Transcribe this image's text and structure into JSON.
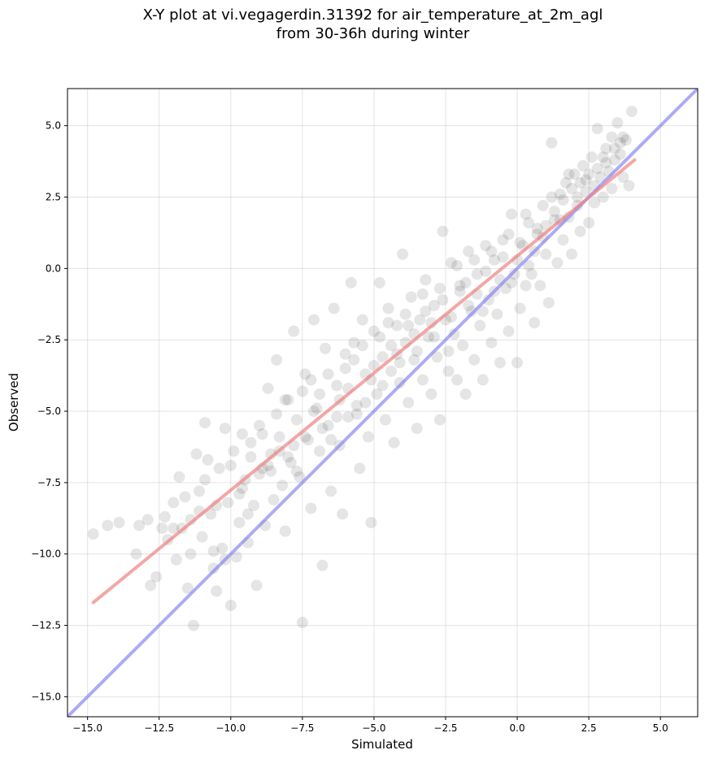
{
  "chart_data": {
    "type": "scatter",
    "title_line1": "X-Y plot at vi.vegagerdin.31392 for air_temperature_at_2m_agl",
    "title_line2": "from 30-36h during winter",
    "xlabel": "Simulated",
    "ylabel": "Observed",
    "xlim": [
      -15.7,
      6.3
    ],
    "ylim": [
      -15.7,
      6.3
    ],
    "grid": true,
    "xticks": [
      -15.0,
      -12.5,
      -10.0,
      -7.5,
      -5.0,
      -2.5,
      0.0,
      2.5,
      5.0
    ],
    "yticks": [
      -15.0,
      -12.5,
      -10.0,
      -7.5,
      -5.0,
      -2.5,
      0.0,
      2.5,
      5.0
    ],
    "xtick_labels": [
      "−15.0",
      "−12.5",
      "−10.0",
      "−7.5",
      "−5.0",
      "−2.5",
      "0.0",
      "2.5",
      "5.0"
    ],
    "ytick_labels": [
      "−15.0",
      "−12.5",
      "−10.0",
      "−7.5",
      "−5.0",
      "−2.5",
      "0.0",
      "2.5",
      "5.0"
    ],
    "point_color": "#000000",
    "point_alpha": 0.1,
    "fit_line": {
      "color": "#f08080",
      "x": [
        -14.8,
        4.1
      ],
      "y": [
        -11.7,
        3.8
      ]
    },
    "identity_line": {
      "color": "#8080f0",
      "x": [
        -15.7,
        6.3
      ],
      "y": [
        -15.7,
        6.3
      ]
    },
    "points": [
      [
        -14.8,
        -9.3
      ],
      [
        -14.3,
        -9.0
      ],
      [
        -13.9,
        -8.9
      ],
      [
        -13.3,
        -10.0
      ],
      [
        -13.2,
        -9.0
      ],
      [
        -12.9,
        -8.8
      ],
      [
        -12.8,
        -11.1
      ],
      [
        -12.6,
        -10.8
      ],
      [
        -12.4,
        -9.1
      ],
      [
        -12.2,
        -9.5
      ],
      [
        -12.0,
        -8.2
      ],
      [
        -11.9,
        -10.2
      ],
      [
        -11.8,
        -7.3
      ],
      [
        -11.6,
        -8.0
      ],
      [
        -11.5,
        -11.2
      ],
      [
        -11.4,
        -10.0
      ],
      [
        -11.3,
        -12.5
      ],
      [
        -11.2,
        -6.5
      ],
      [
        -11.1,
        -7.8
      ],
      [
        -11.0,
        -9.4
      ],
      [
        -10.9,
        -5.4
      ],
      [
        -10.8,
        -6.7
      ],
      [
        -10.7,
        -8.6
      ],
      [
        -10.6,
        -10.5
      ],
      [
        -10.5,
        -11.3
      ],
      [
        -10.4,
        -7.0
      ],
      [
        -10.3,
        -9.8
      ],
      [
        -10.2,
        -5.6
      ],
      [
        -10.1,
        -8.2
      ],
      [
        -10.0,
        -11.8
      ],
      [
        -9.9,
        -6.4
      ],
      [
        -9.8,
        -10.1
      ],
      [
        -9.7,
        -8.9
      ],
      [
        -9.6,
        -5.8
      ],
      [
        -9.5,
        -7.4
      ],
      [
        -9.4,
        -9.6
      ],
      [
        -9.3,
        -6.1
      ],
      [
        -9.2,
        -8.3
      ],
      [
        -9.1,
        -11.1
      ],
      [
        -9.0,
        -5.5
      ],
      [
        -8.9,
        -7.0
      ],
      [
        -8.8,
        -9.0
      ],
      [
        -8.7,
        -4.2
      ],
      [
        -8.6,
        -6.5
      ],
      [
        -8.5,
        -8.1
      ],
      [
        -8.4,
        -3.2
      ],
      [
        -8.3,
        -5.9
      ],
      [
        -8.2,
        -7.6
      ],
      [
        -8.1,
        -9.2
      ],
      [
        -8.0,
        -4.6
      ],
      [
        -7.9,
        -6.8
      ],
      [
        -7.8,
        -2.2
      ],
      [
        -7.7,
        -5.3
      ],
      [
        -7.6,
        -7.3
      ],
      [
        -7.5,
        -12.4
      ],
      [
        -7.4,
        -3.7
      ],
      [
        -7.3,
        -6.0
      ],
      [
        -7.2,
        -8.4
      ],
      [
        -7.1,
        -1.8
      ],
      [
        -7.0,
        -4.9
      ],
      [
        -6.9,
        -6.4
      ],
      [
        -6.8,
        -10.4
      ],
      [
        -6.7,
        -2.8
      ],
      [
        -6.6,
        -5.5
      ],
      [
        -6.5,
        -7.8
      ],
      [
        -6.4,
        -1.4
      ],
      [
        -6.3,
        -4.1
      ],
      [
        -6.2,
        -6.2
      ],
      [
        -6.1,
        -8.6
      ],
      [
        -6.0,
        -3.0
      ],
      [
        -5.9,
        -5.2
      ],
      [
        -5.8,
        -0.5
      ],
      [
        -5.7,
        -2.6
      ],
      [
        -5.6,
        -4.8
      ],
      [
        -5.5,
        -7.0
      ],
      [
        -5.4,
        -1.8
      ],
      [
        -5.3,
        -3.7
      ],
      [
        -5.2,
        -5.9
      ],
      [
        -5.1,
        -8.9
      ],
      [
        -5.0,
        -2.2
      ],
      [
        -4.9,
        -4.4
      ],
      [
        -4.8,
        -0.5
      ],
      [
        -4.7,
        -3.1
      ],
      [
        -4.6,
        -5.3
      ],
      [
        -4.5,
        -1.4
      ],
      [
        -4.4,
        -3.6
      ],
      [
        -4.3,
        -6.1
      ],
      [
        -4.2,
        -2.0
      ],
      [
        -4.1,
        -4.0
      ],
      [
        -4.0,
        0.5
      ],
      [
        -3.9,
        -2.6
      ],
      [
        -3.8,
        -4.7
      ],
      [
        -3.7,
        -1.0
      ],
      [
        -3.6,
        -3.2
      ],
      [
        -3.5,
        -5.6
      ],
      [
        -3.4,
        -1.8
      ],
      [
        -3.3,
        -3.9
      ],
      [
        -3.2,
        -0.4
      ],
      [
        -3.1,
        -2.4
      ],
      [
        -3.0,
        -4.4
      ],
      [
        -2.9,
        -1.3
      ],
      [
        -2.8,
        -3.1
      ],
      [
        -2.7,
        -5.3
      ],
      [
        -2.6,
        1.3
      ],
      [
        -2.5,
        -1.8
      ],
      [
        -2.4,
        -3.6
      ],
      [
        -2.3,
        0.2
      ],
      [
        -2.2,
        -2.3
      ],
      [
        -2.1,
        -3.9
      ],
      [
        -2.0,
        -0.8
      ],
      [
        -1.9,
        -2.7
      ],
      [
        -1.8,
        -4.4
      ],
      [
        -1.7,
        0.6
      ],
      [
        -1.6,
        -1.5
      ],
      [
        -1.5,
        -3.2
      ],
      [
        -1.4,
        -0.2
      ],
      [
        -1.3,
        -2.0
      ],
      [
        -1.2,
        -3.9
      ],
      [
        -1.1,
        0.8
      ],
      [
        -1.0,
        -1.1
      ],
      [
        -0.9,
        -2.6
      ],
      [
        -0.8,
        0.3
      ],
      [
        -0.7,
        -1.6
      ],
      [
        -0.6,
        -3.3
      ],
      [
        -0.5,
        1.0
      ],
      [
        -0.4,
        -0.7
      ],
      [
        -0.3,
        -2.2
      ],
      [
        -0.2,
        1.9
      ],
      [
        -0.1,
        -0.2
      ],
      [
        0.0,
        -3.3
      ],
      [
        0.1,
        -1.4
      ],
      [
        0.2,
        0.8
      ],
      [
        0.3,
        -0.6
      ],
      [
        0.4,
        1.6
      ],
      [
        0.5,
        -0.2
      ],
      [
        0.6,
        -1.9
      ],
      [
        0.7,
        1.2
      ],
      [
        0.8,
        -0.6
      ],
      [
        0.9,
        2.2
      ],
      [
        1.0,
        0.5
      ],
      [
        1.1,
        -1.2
      ],
      [
        1.2,
        4.4
      ],
      [
        1.3,
        1.7
      ],
      [
        1.4,
        0.2
      ],
      [
        1.5,
        2.6
      ],
      [
        1.6,
        1.0
      ],
      [
        1.7,
        3.0
      ],
      [
        1.8,
        1.8
      ],
      [
        1.9,
        0.5
      ],
      [
        2.0,
        3.3
      ],
      [
        2.1,
        2.2
      ],
      [
        2.2,
        1.3
      ],
      [
        2.3,
        3.6
      ],
      [
        2.4,
        2.7
      ],
      [
        2.5,
        1.6
      ],
      [
        2.6,
        3.9
      ],
      [
        2.7,
        2.9
      ],
      [
        2.8,
        4.9
      ],
      [
        2.9,
        3.2
      ],
      [
        3.0,
        2.5
      ],
      [
        3.1,
        4.2
      ],
      [
        3.2,
        3.4
      ],
      [
        3.3,
        4.6
      ],
      [
        3.4,
        3.8
      ],
      [
        3.5,
        5.1
      ],
      [
        3.6,
        4.0
      ],
      [
        3.7,
        3.2
      ],
      [
        3.8,
        4.5
      ],
      [
        3.9,
        2.9
      ],
      [
        4.0,
        5.5
      ],
      [
        -12.3,
        -8.7
      ],
      [
        -11.7,
        -9.1
      ],
      [
        -11.1,
        -8.5
      ],
      [
        -10.6,
        -9.9
      ],
      [
        -10.2,
        -10.2
      ],
      [
        -9.7,
        -7.9
      ],
      [
        -9.4,
        -8.6
      ],
      [
        -9.0,
        -7.2
      ],
      [
        -8.6,
        -7.1
      ],
      [
        -8.3,
        -6.4
      ],
      [
        -8.0,
        -6.6
      ],
      [
        -7.7,
        -7.1
      ],
      [
        -7.4,
        -5.9
      ],
      [
        -7.1,
        -5.0
      ],
      [
        -6.8,
        -5.6
      ],
      [
        -6.5,
        -6.0
      ],
      [
        -6.2,
        -4.6
      ],
      [
        -5.9,
        -4.2
      ],
      [
        -5.6,
        -5.1
      ],
      [
        -5.3,
        -4.7
      ],
      [
        -5.0,
        -3.4
      ],
      [
        -4.7,
        -4.1
      ],
      [
        -4.4,
        -2.7
      ],
      [
        -4.1,
        -3.3
      ],
      [
        -3.8,
        -2.0
      ],
      [
        -3.5,
        -2.9
      ],
      [
        -3.2,
        -1.5
      ],
      [
        -2.9,
        -2.4
      ],
      [
        -2.6,
        -1.1
      ],
      [
        -2.3,
        -1.7
      ],
      [
        -2.0,
        -0.6
      ],
      [
        -1.7,
        -1.3
      ],
      [
        -1.4,
        -0.9
      ],
      [
        -1.1,
        -0.1
      ],
      [
        -0.8,
        -0.8
      ],
      [
        -0.5,
        0.4
      ],
      [
        -0.2,
        -0.5
      ],
      [
        0.1,
        0.9
      ],
      [
        0.4,
        0.1
      ],
      [
        0.7,
        1.4
      ],
      [
        1.0,
        1.5
      ],
      [
        1.3,
        2.0
      ],
      [
        1.6,
        2.4
      ],
      [
        1.9,
        2.8
      ],
      [
        2.2,
        3.0
      ],
      [
        2.5,
        3.3
      ],
      [
        2.8,
        3.5
      ],
      [
        3.1,
        3.7
      ],
      [
        3.4,
        4.2
      ],
      [
        3.7,
        4.6
      ],
      [
        -12.0,
        -9.1
      ],
      [
        -11.4,
        -8.8
      ],
      [
        -10.9,
        -7.4
      ],
      [
        -10.5,
        -8.3
      ],
      [
        -10.0,
        -6.9
      ],
      [
        -9.6,
        -7.7
      ],
      [
        -9.3,
        -6.6
      ],
      [
        -8.9,
        -5.8
      ],
      [
        -8.7,
        -6.9
      ],
      [
        -8.4,
        -5.1
      ],
      [
        -8.1,
        -4.6
      ],
      [
        -7.8,
        -6.2
      ],
      [
        -7.5,
        -4.3
      ],
      [
        -7.2,
        -3.9
      ],
      [
        -6.9,
        -4.4
      ],
      [
        -6.6,
        -3.7
      ],
      [
        -6.3,
        -5.2
      ],
      [
        -6.0,
        -3.5
      ],
      [
        -5.7,
        -3.2
      ],
      [
        -5.4,
        -2.7
      ],
      [
        -5.1,
        -3.9
      ],
      [
        -4.8,
        -2.4
      ],
      [
        -4.5,
        -1.9
      ],
      [
        -4.2,
        -3.0
      ],
      [
        -3.9,
        -1.6
      ],
      [
        -3.6,
        -2.3
      ],
      [
        -3.3,
        -0.9
      ],
      [
        -3.0,
        -1.9
      ],
      [
        -2.7,
        -0.7
      ],
      [
        -2.4,
        -2.9
      ],
      [
        -2.1,
        0.1
      ],
      [
        -1.8,
        -0.5
      ],
      [
        -1.5,
        0.3
      ],
      [
        -1.2,
        -1.5
      ],
      [
        -0.9,
        0.6
      ],
      [
        -0.6,
        -0.4
      ],
      [
        -0.3,
        1.2
      ],
      [
        0.0,
        0.3
      ],
      [
        0.3,
        1.9
      ],
      [
        0.6,
        0.6
      ],
      [
        0.9,
        1.1
      ],
      [
        1.2,
        2.5
      ],
      [
        1.5,
        1.7
      ],
      [
        1.8,
        3.3
      ],
      [
        2.1,
        2.5
      ],
      [
        2.4,
        3.1
      ],
      [
        2.7,
        2.3
      ],
      [
        3.0,
        3.9
      ],
      [
        3.3,
        2.8
      ],
      [
        3.6,
        4.4
      ]
    ]
  }
}
